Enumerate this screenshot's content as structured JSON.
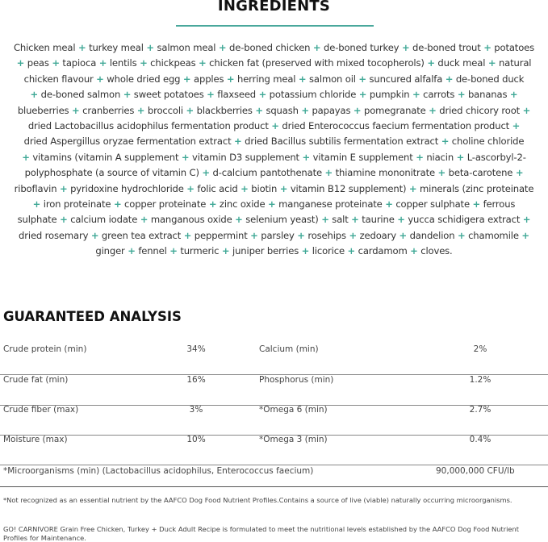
{
  "ingredients": {
    "title": "INGREDIENTS",
    "accent_color": "#3fa896",
    "lines": [
      "Chicken meal + turkey meal + salmon meal + de-boned chicken + de-boned turkey + de-boned trout + potatoes",
      "+ peas + tapioca + lentils + chickpeas + chicken fat (preserved with mixed tocopherols) + duck meal + natural",
      "chicken flavour + whole dried egg + apples + herring meal + salmon oil + suncured alfalfa + de-boned duck",
      "+ de-boned salmon + sweet potatoes + flaxseed + potassium chloride + pumpkin + carrots + bananas +",
      "blueberries + cranberries + broccoli + blackberries + squash + papayas + pomegranate + dried chicory root +",
      "dried Lactobacillus acidophilus fermentation product + dried Enterococcus faecium fermentation product +",
      "dried Aspergillus oryzae fermentation extract + dried Bacillus subtilis fermentation extract + choline chloride",
      "+ vitamins (vitamin A supplement + vitamin D3 supplement + vitamin E supplement + niacin + L-ascorbyl-2-",
      "polyphosphate (a source of vitamin C) + d-calcium pantothenate + thiamine mononitrate + beta-carotene +",
      "riboflavin + pyridoxine hydrochloride + folic acid + biotin + vitamin B12 supplement) + minerals (zinc proteinate",
      "+ iron proteinate + copper proteinate + zinc oxide + manganese proteinate + copper sulphate + ferrous",
      "sulphate + calcium iodate + manganous oxide + selenium yeast) + salt + taurine + yucca schidigera extract +",
      "dried rosemary + green tea extract + peppermint + parsley + rosehips + zedoary + dandelion + chamomile +",
      "ginger + fennel + turmeric + juniper berries + licorice + cardamom + cloves."
    ]
  },
  "analysis": {
    "title": "GUARANTEED ANALYSIS",
    "rows": [
      {
        "label1": "Crude protein (min)",
        "value1": "34%",
        "label2": "Calcium (min)",
        "value2": "2%"
      },
      {
        "label1": "Crude fat (min)",
        "value1": "16%",
        "label2": "Phosphorus (min)",
        "value2": "1.2%"
      },
      {
        "label1": "Crude fiber (max)",
        "value1": "3%",
        "label2": "*Omega 6 (min)",
        "value2": "2.7%"
      },
      {
        "label1": "Moisture (max)",
        "value1": "10%",
        "label2": "*Omega 3 (min)",
        "value2": "0.4%"
      }
    ],
    "micro": {
      "label": "*Microorganisms (min) (Lactobacillus acidophilus, Enterococcus faecium)",
      "value": "90,000,000 CFU/lb"
    },
    "footnote": "*Not recognized as an essential nutrient by the AAFCO Dog Food Nutrient Profiles.Contains a source of live (viable) naturally occurring microorganisms.",
    "statement": "GO! CARNIVORE Grain Free Chicken, Turkey + Duck Adult Recipe is formulated to meet the nutritional levels established by the AAFCO Dog Food Nutrient Profiles for Maintenance."
  }
}
